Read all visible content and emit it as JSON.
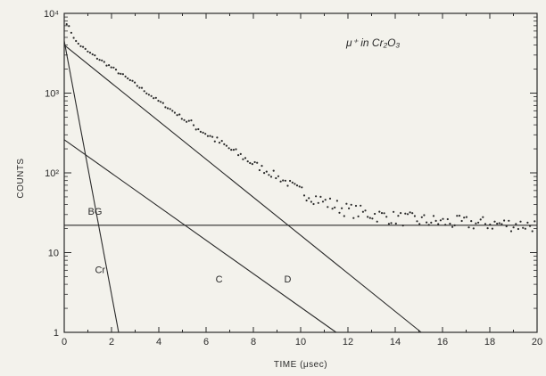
{
  "chart_data": {
    "type": "scatter",
    "title": "",
    "annotation": "μ⁺ in Cr₂O₃",
    "xlabel": "TIME (μsec)",
    "ylabel": "COUNTS",
    "xlim": [
      0,
      20
    ],
    "ylim": [
      1,
      10000
    ],
    "y_scale": "log",
    "x_ticks": [
      0,
      2,
      4,
      6,
      8,
      10,
      12,
      14,
      16,
      18,
      20
    ],
    "x_tick_labels": [
      "0",
      "2",
      "4",
      "6",
      "8",
      "10",
      "12",
      "14",
      "16",
      "18",
      "20"
    ],
    "y_ticks": [
      1,
      10,
      100,
      1000,
      10000
    ],
    "y_tick_labels": [
      "1",
      "10",
      "10²",
      "10³",
      "10⁴"
    ],
    "grid": false,
    "ink_color": "#2a2a2a",
    "background_color": "#f3f2ec",
    "lines": [
      {
        "name": "BG",
        "points": [
          [
            0,
            22
          ],
          [
            20,
            22
          ]
        ]
      },
      {
        "name": "Cr",
        "points": [
          [
            0,
            4500
          ],
          [
            2.3,
            1
          ]
        ]
      },
      {
        "name": "C",
        "points": [
          [
            0,
            260
          ],
          [
            11.5,
            1
          ]
        ]
      },
      {
        "name": "D",
        "points": [
          [
            0,
            4000
          ],
          [
            15.1,
            1
          ]
        ]
      }
    ],
    "data_trend": {
      "description": "measured counts: sum of Cr, D and BG components with scatter",
      "x": [
        0,
        0.5,
        1,
        2,
        3,
        4,
        5,
        6,
        7,
        8,
        9,
        10,
        11,
        12,
        14,
        16,
        18,
        20
      ],
      "y": [
        8800,
        4400,
        3300,
        2100,
        1300,
        790,
        490,
        310,
        200,
        130,
        90,
        60,
        43,
        34,
        27,
        24,
        23,
        22
      ]
    }
  }
}
